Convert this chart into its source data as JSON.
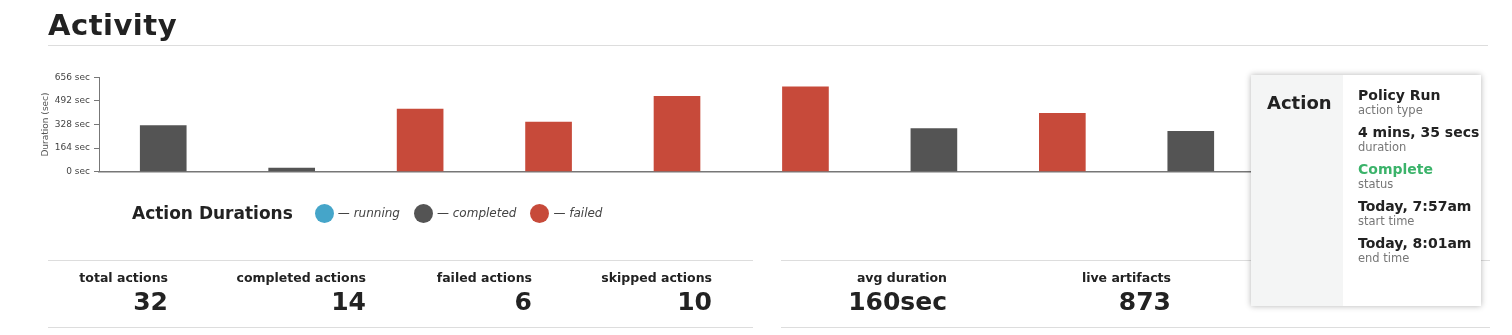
{
  "chart_data": [
    {
      "type": "bar",
      "title": "Activity",
      "ylabel": "Duration (sec)",
      "legend_title": "Action Durations",
      "legend": "bottom left",
      "grid": false,
      "categories": [
        null,
        null,
        null,
        null,
        null,
        null,
        null,
        null,
        null
      ],
      "series": [
        {
          "name": "— running",
          "color": "#45a5c9",
          "values": [
            null,
            null,
            null,
            null,
            null,
            null,
            null,
            null,
            null
          ]
        },
        {
          "name": "— completed",
          "color": "#545454",
          "values": [
            320,
            25,
            null,
            null,
            null,
            null,
            300,
            null,
            280
          ]
        },
        {
          "name": "— failed",
          "color": "#c74a3a",
          "values": [
            null,
            null,
            435,
            345,
            525,
            590,
            null,
            405,
            null
          ]
        }
      ],
      "ylim": [
        0,
        656
      ],
      "yticks": [
        {
          "value": 0,
          "label": "0 sec"
        },
        {
          "value": 164,
          "label": "164 sec"
        },
        {
          "value": 328,
          "label": "328 sec"
        },
        {
          "value": 492,
          "label": "492 sec"
        },
        {
          "value": 656,
          "label": "656 sec"
        }
      ]
    },
    {
      "type": "other",
      "categories": [
        "total actions",
        "completed actions",
        "failed actions",
        "skipped actions",
        "avg duration",
        "live artifacts"
      ],
      "value_labels": [
        "32",
        "14",
        "6",
        "10",
        "160sec",
        "873"
      ]
    },
    {
      "type": "other",
      "title": "Action",
      "categories": [
        "action type",
        "duration",
        "status",
        "start time",
        "end time"
      ],
      "value_labels": [
        "Policy Run",
        "4 mins, 35 secs",
        "Complete",
        "Today, 7:57am",
        "Today, 8:01am"
      ],
      "colors": [
        "#222222",
        "#222222",
        "#3bb36a",
        "#222222",
        "#222222"
      ]
    }
  ]
}
